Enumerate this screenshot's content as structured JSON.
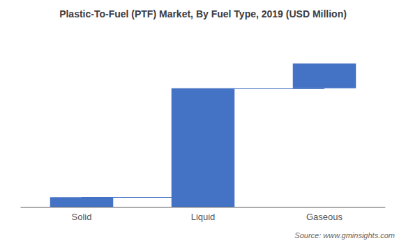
{
  "chart_data": {
    "type": "bar",
    "title": "Plastic-To-Fuel (PTF) Market, By Fuel Type, 2019 (USD Million)",
    "categories": [
      "Solid",
      "Liquid",
      "Gaseous"
    ],
    "values": [
      5,
      62,
      13
    ],
    "bottoms": [
      0,
      0,
      62
    ],
    "color": "#4472C4",
    "ylim": [
      0,
      90
    ],
    "tick_labels": "x",
    "grid": false,
    "annotations": [
      "Source: www.gminsights.com"
    ]
  }
}
